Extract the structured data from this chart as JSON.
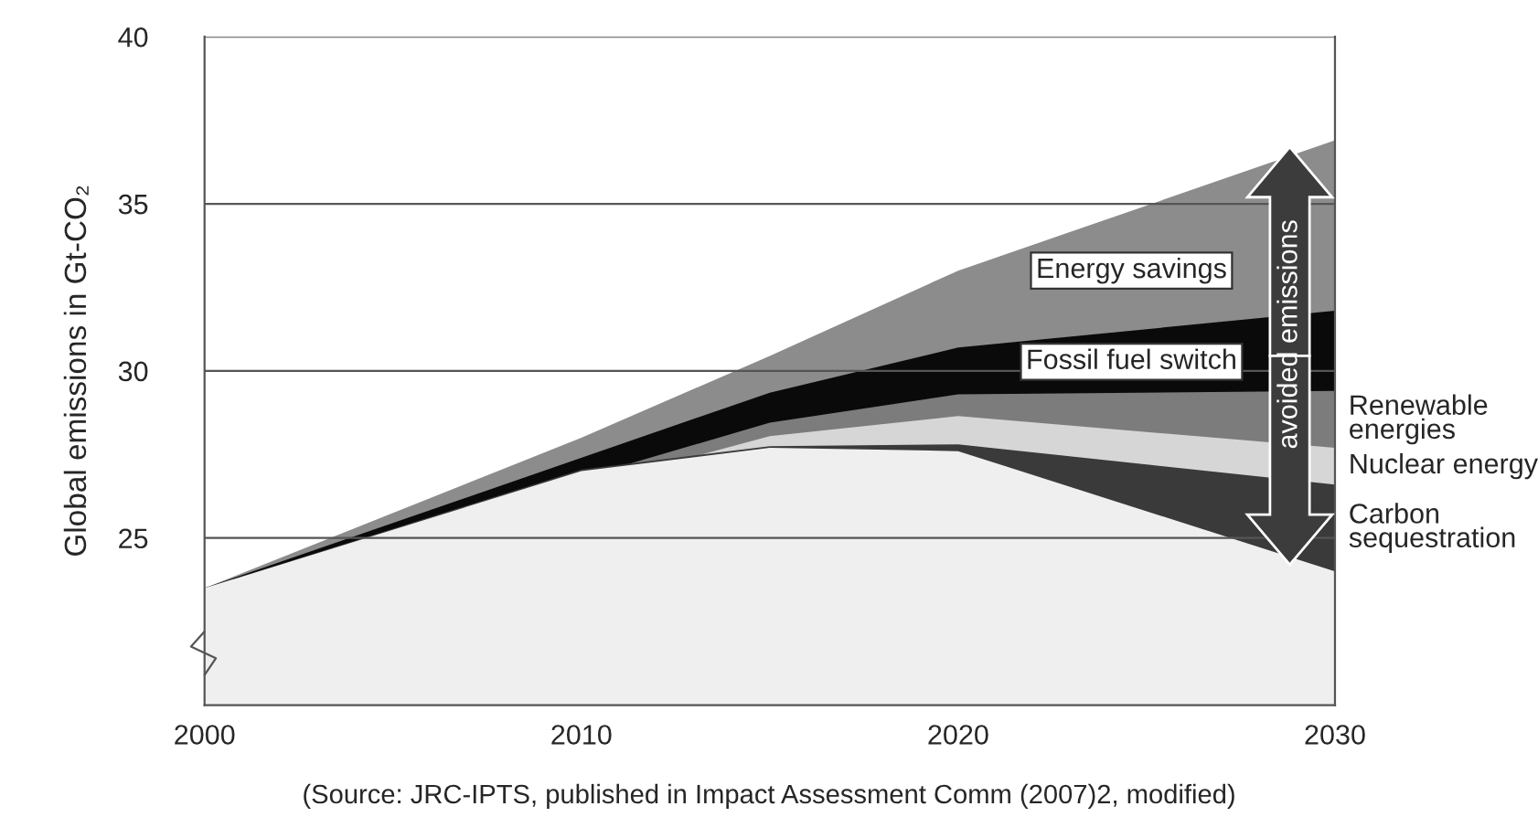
{
  "chart_data": {
    "type": "area",
    "ylabel": "Global emissions in Gt-CO₂",
    "x": [
      2000,
      2010,
      2015,
      2020,
      2030
    ],
    "series": [
      {
        "color": "#efefef",
        "values": [
          23.5,
          27.0,
          27.7,
          27.6,
          24.0
        ]
      },
      {
        "name": "Carbon\nsequestration",
        "color": "#3a3a3a",
        "values": [
          23.5,
          27.05,
          27.75,
          27.8,
          26.6
        ]
      },
      {
        "name": "Nuclear energy",
        "color": "#d6d6d6",
        "x": [
          2000,
          2015,
          2020,
          2030
        ],
        "values": [
          23.5,
          28.05,
          28.65,
          27.7
        ]
      },
      {
        "name": "Renewable\nenergies",
        "color": "#7c7c7c",
        "x": [
          2000,
          2015,
          2020,
          2030
        ],
        "values": [
          23.5,
          28.45,
          29.3,
          29.4
        ]
      },
      {
        "name": "Fossil fuel switch",
        "color": "#0a0a0a",
        "x": [
          2000,
          2015,
          2020,
          2030
        ],
        "values": [
          23.5,
          29.35,
          30.7,
          31.8
        ]
      },
      {
        "name": "Energy savings",
        "color": "#8c8c8c",
        "values": [
          23.5,
          28.0,
          30.45,
          33.0,
          36.9
        ]
      }
    ],
    "xlim": [
      2000,
      2030
    ],
    "xticks": [
      2000,
      2010,
      2020,
      2030
    ],
    "ylim": [
      20,
      40
    ],
    "yticks": [
      25,
      30,
      35,
      40
    ],
    "grid": "y",
    "annotations": [
      "avoided emissions",
      "(Source: JRC-IPTS, published in Impact Assessment Comm (2007)2, modified)"
    ]
  }
}
